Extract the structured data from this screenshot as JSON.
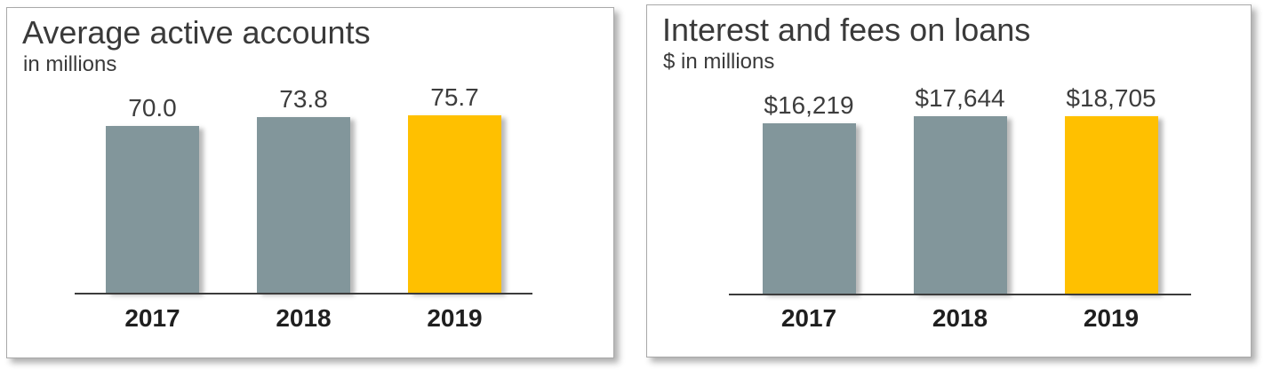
{
  "colors": {
    "bar_gray": "#82969B",
    "bar_gold": "#FFC000",
    "axis": "#3C3C3C",
    "title_text": "#3A3A3A",
    "value_text": "#3D3D3D",
    "year_text": "#1F1F1F",
    "panel_border": "#A9A9A9",
    "background": "#FFFFFF"
  },
  "chart_data": [
    {
      "type": "bar",
      "title": "Average active accounts",
      "subtitle": "in millions",
      "categories": [
        "2017",
        "2018",
        "2019"
      ],
      "values": [
        70.0,
        73.8,
        75.7
      ],
      "value_labels": [
        "70.0",
        "73.8",
        "75.7"
      ],
      "ylim": [
        0,
        87
      ],
      "grid": false,
      "legend": "none",
      "highlight_index": 2,
      "bar_colors": [
        "#82969B",
        "#82969B",
        "#FFC000"
      ]
    },
    {
      "type": "bar",
      "title": "Interest and fees on loans",
      "subtitle": "$ in millions",
      "categories": [
        "2017",
        "2018",
        "2019"
      ],
      "values": [
        16219,
        17644,
        18705
      ],
      "value_labels": [
        "$16,219",
        "$17,644",
        "$18,705"
      ],
      "ylim": [
        0,
        19800
      ],
      "grid": false,
      "legend": "none",
      "highlight_index": 2,
      "bar_colors": [
        "#82969B",
        "#82969B",
        "#FFC000"
      ]
    }
  ]
}
